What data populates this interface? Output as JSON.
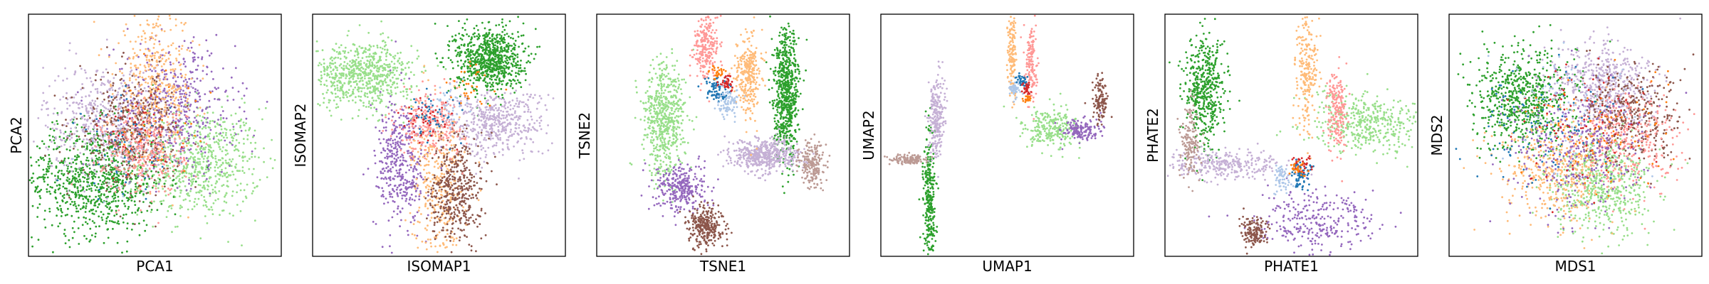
{
  "chart_data": [
    {
      "type": "scatter",
      "title": "",
      "xlabel": "PCA1",
      "ylabel": "PCA2",
      "grid": false,
      "legend": "none",
      "ticks": "hidden",
      "xlim": [
        -2.5,
        2.5
      ],
      "ylim": [
        -2,
        2.4
      ],
      "clusters": [
        {
          "color": "#98df8a",
          "cx": 0.9,
          "cy": -0.3,
          "sx": 0.6,
          "sy": 0.5,
          "n": 700
        },
        {
          "color": "#2ca02c",
          "cx": -1.2,
          "cy": -0.6,
          "sx": 0.7,
          "sy": 0.5,
          "n": 900
        },
        {
          "color": "#c5b0d5",
          "cx": -1.0,
          "cy": 0.5,
          "sx": 0.6,
          "sy": 0.5,
          "n": 500
        },
        {
          "color": "#9467bd",
          "cx": 0.4,
          "cy": 0.7,
          "sx": 0.6,
          "sy": 0.6,
          "n": 500
        },
        {
          "color": "#ffbb78",
          "cx": 0.0,
          "cy": 1.1,
          "sx": 0.4,
          "sy": 0.7,
          "n": 450
        },
        {
          "color": "#8c564b",
          "cx": -0.5,
          "cy": 0.3,
          "sx": 0.5,
          "sy": 0.5,
          "n": 400
        },
        {
          "color": "#ff9896",
          "cx": -0.2,
          "cy": -0.1,
          "sx": 0.4,
          "sy": 0.4,
          "n": 300
        },
        {
          "color": "#1f77b4",
          "cx": -0.6,
          "cy": 0.0,
          "sx": 0.5,
          "sy": 0.5,
          "n": 50
        },
        {
          "color": "#d62728",
          "cx": -0.3,
          "cy": 0.2,
          "sx": 0.4,
          "sy": 0.4,
          "n": 40
        },
        {
          "color": "#ff7f0e",
          "cx": 0.1,
          "cy": 0.3,
          "sx": 0.5,
          "sy": 0.5,
          "n": 30
        },
        {
          "color": "#aec7e8",
          "cx": -0.5,
          "cy": -0.2,
          "sx": 0.5,
          "sy": 0.4,
          "n": 30
        }
      ]
    },
    {
      "type": "scatter",
      "title": "",
      "xlabel": "ISOMAP1",
      "ylabel": "ISOMAP2",
      "grid": false,
      "legend": "none",
      "ticks": "hidden",
      "xlim": [
        -3,
        3
      ],
      "ylim": [
        -3,
        3
      ],
      "clusters": [
        {
          "color": "#98df8a",
          "cx": -1.8,
          "cy": 1.5,
          "sx": 0.6,
          "sy": 0.4,
          "n": 700
        },
        {
          "color": "#2ca02c",
          "cx": 1.2,
          "cy": 1.9,
          "sx": 0.4,
          "sy": 0.4,
          "n": 800
        },
        {
          "color": "#c5b0d5",
          "cx": 1.3,
          "cy": 0.3,
          "sx": 0.6,
          "sy": 0.4,
          "n": 500
        },
        {
          "color": "#9467bd",
          "cx": -0.9,
          "cy": -0.7,
          "sx": 0.3,
          "sy": 0.8,
          "n": 400
        },
        {
          "color": "#ffbb78",
          "cx": 0.0,
          "cy": -1.3,
          "sx": 0.3,
          "sy": 0.9,
          "n": 350
        },
        {
          "color": "#8c564b",
          "cx": 0.4,
          "cy": -1.3,
          "sx": 0.3,
          "sy": 0.7,
          "n": 450
        },
        {
          "color": "#ff9896",
          "cx": -0.2,
          "cy": 0.3,
          "sx": 0.4,
          "sy": 0.4,
          "n": 250
        },
        {
          "color": "#1f77b4",
          "cx": -0.1,
          "cy": 0.5,
          "sx": 0.3,
          "sy": 0.3,
          "n": 50
        },
        {
          "color": "#d62728",
          "cx": -0.3,
          "cy": 0.4,
          "sx": 0.3,
          "sy": 0.3,
          "n": 40
        },
        {
          "color": "#ff7f0e",
          "cx": 0.8,
          "cy": 1.2,
          "sx": 0.3,
          "sy": 0.3,
          "n": 30
        },
        {
          "color": "#aec7e8",
          "cx": 0.3,
          "cy": 0.7,
          "sx": 0.3,
          "sy": 0.3,
          "n": 30
        }
      ]
    },
    {
      "type": "scatter",
      "title": "",
      "xlabel": "TSNE1",
      "ylabel": "TSNE2",
      "grid": false,
      "legend": "none",
      "ticks": "hidden",
      "xlim": [
        -60,
        60
      ],
      "ylim": [
        -60,
        60
      ],
      "clusters": [
        {
          "color": "#98df8a",
          "cx": -28,
          "cy": 8,
          "sx": 5,
          "sy": 14,
          "n": 600
        },
        {
          "color": "#2ca02c",
          "cx": 30,
          "cy": 20,
          "sx": 3,
          "sy": 16,
          "n": 700
        },
        {
          "color": "#c5b0d5",
          "cx": 20,
          "cy": -10,
          "sx": 8,
          "sy": 4,
          "n": 500
        },
        {
          "color": "#9467bd",
          "cx": -20,
          "cy": -26,
          "sx": 6,
          "sy": 6,
          "n": 300
        },
        {
          "color": "#8c564b",
          "cx": -8,
          "cy": -45,
          "sx": 4,
          "sy": 5,
          "n": 300
        },
        {
          "color": "#ffbb78",
          "cx": 12,
          "cy": 30,
          "sx": 3,
          "sy": 10,
          "n": 300
        },
        {
          "color": "#ff9896",
          "cx": -8,
          "cy": 44,
          "sx": 3,
          "sy": 8,
          "n": 250
        },
        {
          "color": "#bc9a94",
          "cx": 42,
          "cy": -14,
          "sx": 3,
          "sy": 6,
          "n": 200
        },
        {
          "color": "#1f77b4",
          "cx": -3,
          "cy": 22,
          "sx": 3,
          "sy": 3,
          "n": 80
        },
        {
          "color": "#d62728",
          "cx": 2,
          "cy": 26,
          "sx": 2,
          "sy": 2,
          "n": 40
        },
        {
          "color": "#ff7f0e",
          "cx": -2,
          "cy": 31,
          "sx": 2,
          "sy": 2,
          "n": 30
        },
        {
          "color": "#aec7e8",
          "cx": 2,
          "cy": 16,
          "sx": 3,
          "sy": 3,
          "n": 80
        }
      ]
    },
    {
      "type": "scatter",
      "title": "",
      "xlabel": "UMAP1",
      "ylabel": "UMAP2",
      "grid": false,
      "legend": "none",
      "ticks": "hidden",
      "xlim": [
        -6,
        20
      ],
      "ylim": [
        -6,
        14
      ],
      "clusters": [
        {
          "color": "#2ca02c",
          "cx": -1.0,
          "cy": -1.5,
          "sx": 0.3,
          "sy": 2.8,
          "n": 300
        },
        {
          "color": "#c5b0d5",
          "cx": -0.3,
          "cy": 5.5,
          "sx": 0.4,
          "sy": 1.7,
          "n": 250
        },
        {
          "color": "#bc9a94",
          "cx": -3.0,
          "cy": 2.0,
          "sx": 1.0,
          "sy": 0.2,
          "n": 120
        },
        {
          "color": "#ffbb78",
          "cx": 7.5,
          "cy": 11.0,
          "sx": 0.2,
          "sy": 1.8,
          "n": 150
        },
        {
          "color": "#ff9896",
          "cx": 9.5,
          "cy": 10.0,
          "sx": 0.3,
          "sy": 1.5,
          "n": 150
        },
        {
          "color": "#98df8a",
          "cx": 11.5,
          "cy": 4.5,
          "sx": 1.4,
          "sy": 0.9,
          "n": 250
        },
        {
          "color": "#9467bd",
          "cx": 14.5,
          "cy": 4.3,
          "sx": 1.0,
          "sy": 0.5,
          "n": 150
        },
        {
          "color": "#8c564b",
          "cx": 16.5,
          "cy": 7.0,
          "sx": 0.4,
          "sy": 1.0,
          "n": 120
        },
        {
          "color": "#aec7e8",
          "cx": 7.8,
          "cy": 7.8,
          "sx": 0.3,
          "sy": 0.3,
          "n": 60
        },
        {
          "color": "#1f77b4",
          "cx": 8.5,
          "cy": 8.5,
          "sx": 0.3,
          "sy": 0.3,
          "n": 40
        },
        {
          "color": "#d62728",
          "cx": 9.0,
          "cy": 7.8,
          "sx": 0.2,
          "sy": 0.3,
          "n": 30
        },
        {
          "color": "#ff7f0e",
          "cx": 9.0,
          "cy": 7.0,
          "sx": 0.2,
          "sy": 0.2,
          "n": 20
        }
      ]
    },
    {
      "type": "scatter",
      "title": "",
      "xlabel": "PHATE1",
      "ylabel": "PHATE2",
      "grid": false,
      "legend": "none",
      "ticks": "hidden",
      "xlim": [
        -0.05,
        0.05
      ],
      "ylim": [
        -0.05,
        0.05
      ],
      "clusters": [
        {
          "color": "#2ca02c",
          "cx": -0.034,
          "cy": 0.018,
          "sx": 0.004,
          "sy": 0.012,
          "n": 500
        },
        {
          "color": "#98df8a",
          "cx": 0.03,
          "cy": 0.005,
          "sx": 0.012,
          "sy": 0.006,
          "n": 450
        },
        {
          "color": "#c5b0d5",
          "cx": -0.025,
          "cy": -0.012,
          "sx": 0.012,
          "sy": 0.003,
          "n": 300
        },
        {
          "color": "#9467bd",
          "cx": 0.01,
          "cy": -0.036,
          "sx": 0.012,
          "sy": 0.006,
          "n": 300
        },
        {
          "color": "#8c564b",
          "cx": -0.015,
          "cy": -0.04,
          "sx": 0.003,
          "sy": 0.003,
          "n": 150
        },
        {
          "color": "#ffbb78",
          "cx": 0.006,
          "cy": 0.028,
          "sx": 0.002,
          "sy": 0.014,
          "n": 250
        },
        {
          "color": "#ff9896",
          "cx": 0.018,
          "cy": 0.01,
          "sx": 0.002,
          "sy": 0.008,
          "n": 200
        },
        {
          "color": "#bc9a94",
          "cx": -0.04,
          "cy": -0.002,
          "sx": 0.002,
          "sy": 0.008,
          "n": 150
        },
        {
          "color": "#1f77b4",
          "cx": 0.004,
          "cy": -0.016,
          "sx": 0.002,
          "sy": 0.003,
          "n": 70
        },
        {
          "color": "#aec7e8",
          "cx": -0.004,
          "cy": -0.018,
          "sx": 0.002,
          "sy": 0.003,
          "n": 60
        },
        {
          "color": "#d62728",
          "cx": 0.004,
          "cy": -0.012,
          "sx": 0.002,
          "sy": 0.002,
          "n": 30
        },
        {
          "color": "#ff7f0e",
          "cx": 0.002,
          "cy": -0.014,
          "sx": 0.002,
          "sy": 0.002,
          "n": 30
        }
      ]
    },
    {
      "type": "scatter",
      "title": "",
      "xlabel": "MDS1",
      "ylabel": "MDS2",
      "grid": false,
      "legend": "none",
      "ticks": "hidden",
      "xlim": [
        -3,
        3
      ],
      "ylim": [
        -3,
        3
      ],
      "clusters": [
        {
          "color": "#2ca02c",
          "cx": -1.2,
          "cy": 0.9,
          "sx": 0.6,
          "sy": 0.6,
          "n": 700
        },
        {
          "color": "#98df8a",
          "cx": 0.6,
          "cy": -1.2,
          "sx": 0.6,
          "sy": 0.6,
          "n": 600
        },
        {
          "color": "#c5b0d5",
          "cx": 0.6,
          "cy": 1.3,
          "sx": 0.6,
          "sy": 0.5,
          "n": 500
        },
        {
          "color": "#ffbb78",
          "cx": -0.5,
          "cy": -0.8,
          "sx": 0.7,
          "sy": 0.7,
          "n": 450
        },
        {
          "color": "#8c564b",
          "cx": 1.3,
          "cy": 0.5,
          "sx": 0.6,
          "sy": 0.6,
          "n": 400
        },
        {
          "color": "#ff9896",
          "cx": 1.2,
          "cy": -0.2,
          "sx": 0.6,
          "sy": 0.6,
          "n": 350
        },
        {
          "color": "#9467bd",
          "cx": 0.0,
          "cy": -0.4,
          "sx": 0.8,
          "sy": 0.8,
          "n": 350
        },
        {
          "color": "#1f77b4",
          "cx": -0.8,
          "cy": 0.0,
          "sx": 0.8,
          "sy": 0.8,
          "n": 100
        },
        {
          "color": "#d62728",
          "cx": 0.2,
          "cy": 0.2,
          "sx": 0.8,
          "sy": 0.8,
          "n": 80
        },
        {
          "color": "#ff7f0e",
          "cx": 0.5,
          "cy": 0.0,
          "sx": 0.8,
          "sy": 0.8,
          "n": 80
        },
        {
          "color": "#aec7e8",
          "cx": -0.2,
          "cy": 0.5,
          "sx": 0.8,
          "sy": 0.8,
          "n": 80
        }
      ]
    }
  ]
}
